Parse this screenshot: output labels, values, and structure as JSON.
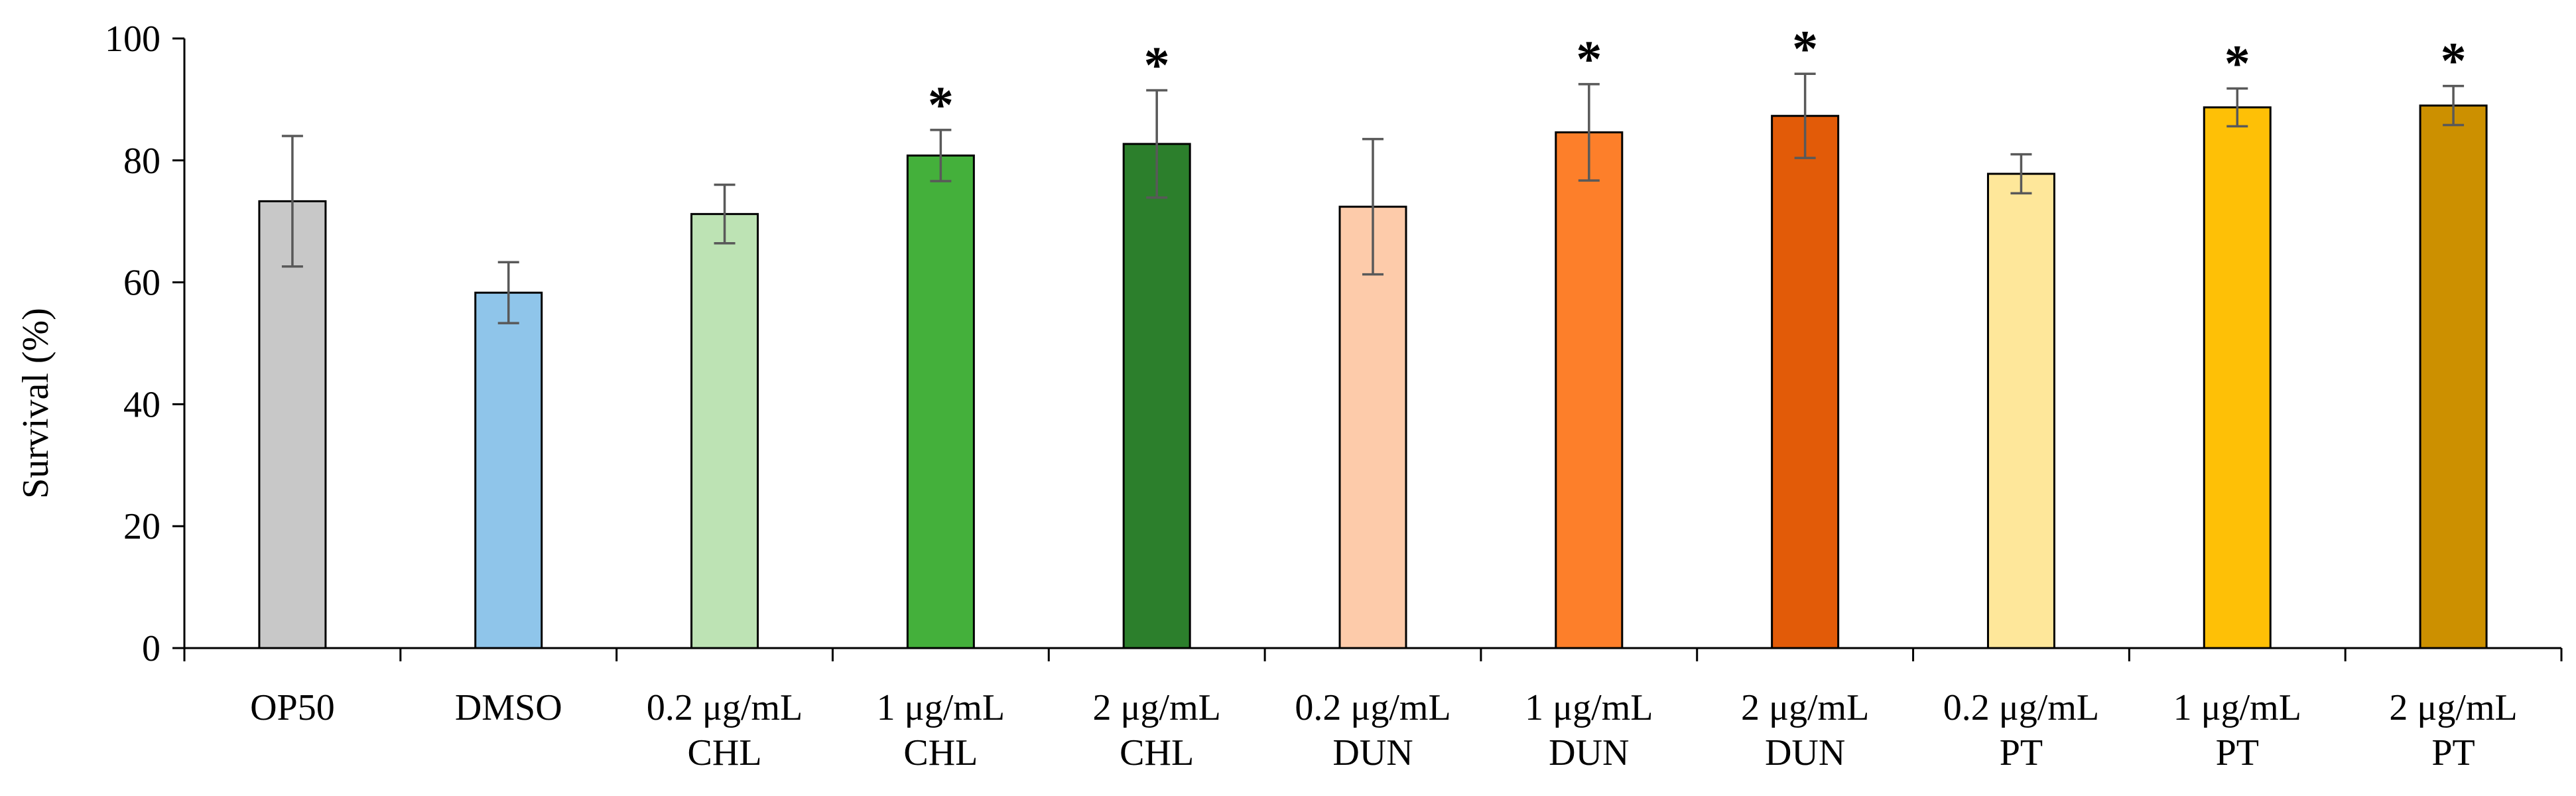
{
  "chart_data": {
    "type": "bar",
    "title": "",
    "xlabel": "",
    "ylabel": "Survival (%)",
    "ylim": [
      0,
      100
    ],
    "yticks": [
      "0",
      "20",
      "40",
      "60",
      "80",
      "100"
    ],
    "grid": false,
    "categories": [
      [
        "OP50"
      ],
      [
        "DMSO"
      ],
      [
        "0.2 μg/mL",
        "CHL"
      ],
      [
        "1 μg/mL",
        "CHL"
      ],
      [
        "2 μg/mL",
        "CHL"
      ],
      [
        "0.2 μg/mL",
        "DUN"
      ],
      [
        "1 μg/mL",
        "DUN"
      ],
      [
        "2 μg/mL",
        "DUN"
      ],
      [
        "0.2 μg/mL",
        "PT"
      ],
      [
        "1 μg/mL",
        "PT"
      ],
      [
        "2 μg/mL",
        "PT"
      ]
    ],
    "values": [
      73.3,
      58.3,
      71.2,
      80.8,
      82.7,
      72.4,
      84.6,
      87.3,
      77.8,
      88.7,
      89.0
    ],
    "errors": [
      10.7,
      5.0,
      4.8,
      4.2,
      8.8,
      11.1,
      7.9,
      6.9,
      3.2,
      3.1,
      3.2
    ],
    "significance": [
      "",
      "",
      "",
      "*",
      "*",
      "",
      "*",
      "*",
      "",
      "*",
      "*"
    ],
    "colors": [
      "#c8c8c8",
      "#8fc5ea",
      "#bde3b4",
      "#44b03b",
      "#2c7f2c",
      "#fdcbaa",
      "#fd7f2a",
      "#e25b08",
      "#fee79a",
      "#fec006",
      "#cc9000"
    ]
  }
}
